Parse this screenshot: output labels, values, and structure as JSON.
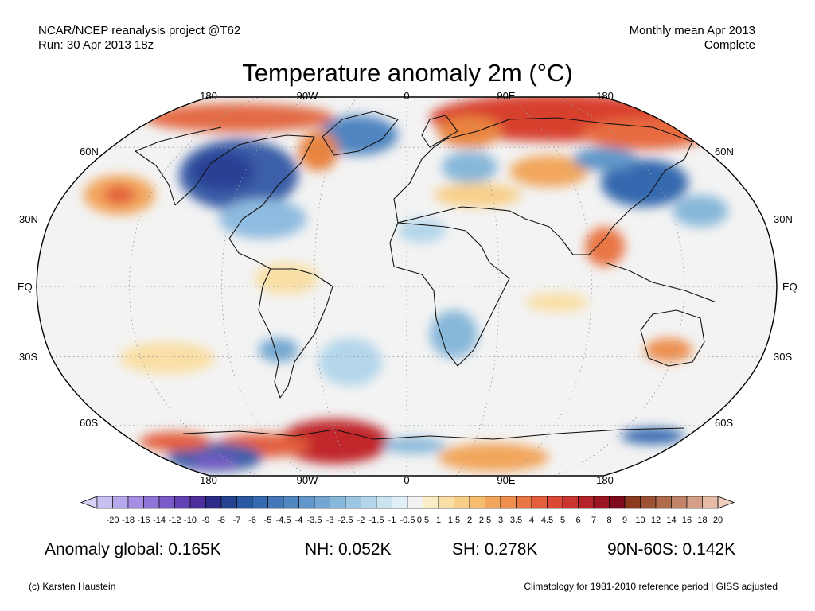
{
  "header": {
    "source_line": "NCAR/NCEP reanalysis project @T62",
    "run_line": "Run: 30 Apr 2013 18z",
    "period_line": "Monthly mean Apr 2013",
    "status_line": "Complete",
    "title": "Temperature anomaly 2m (°C)"
  },
  "map": {
    "projection": "robinson",
    "longitude_labels_top": [
      "180",
      "90W",
      "0",
      "90E",
      "180"
    ],
    "longitude_labels_bottom": [
      "180",
      "90W",
      "0",
      "90E",
      "180"
    ],
    "latitude_labels_left": [
      "60N",
      "30N",
      "EQ",
      "30S",
      "60S"
    ],
    "latitude_labels_right": [
      "60N",
      "30N",
      "EQ",
      "30S",
      "60S"
    ],
    "gridlines": true
  },
  "colorbar": {
    "labels": [
      "-20",
      "-18",
      "-16",
      "-14",
      "-12",
      "-10",
      "-9",
      "-8",
      "-7",
      "-6",
      "-5",
      "-4.5",
      "-4",
      "-3.5",
      "-3",
      "-2.5",
      "-2",
      "-1.5",
      "-1",
      "-0.5",
      "0.5",
      "1",
      "1.5",
      "2",
      "2.5",
      "3",
      "3.5",
      "4",
      "4.5",
      "5",
      "6",
      "7",
      "8",
      "9",
      "10",
      "12",
      "14",
      "16",
      "18",
      "20"
    ],
    "colors": [
      "#c9c0f2",
      "#b7a8ec",
      "#a48fe3",
      "#8f74d8",
      "#7a5ac9",
      "#6342b5",
      "#4d2e9d",
      "#2d2a8a",
      "#24428f",
      "#2a58a3",
      "#3469af",
      "#4377b8",
      "#5187c1",
      "#6197c9",
      "#73a7d1",
      "#87b7d9",
      "#9cc7e2",
      "#b3d6ea",
      "#cae4f1",
      "#e0eff7",
      "#f2f2f2",
      "#faecc4",
      "#f9dfa5",
      "#f8cf88",
      "#f6bd6f",
      "#f2a65c",
      "#ee8f4f",
      "#e97645",
      "#e35e3d",
      "#db4836",
      "#ca3530",
      "#b5232a",
      "#9c1523",
      "#7e0a1c",
      "#8b3a1e",
      "#9e5235",
      "#b06a4c",
      "#c28468",
      "#d49f86",
      "#e6bca7"
    ],
    "end_left_color": "#d9d2f6",
    "end_right_color": "#f1cdbd"
  },
  "stats": {
    "global": "Anomaly global: 0.165K",
    "nh": "NH: 0.052K",
    "sh": "SH: 0.278K",
    "band": "90N-60S: 0.142K"
  },
  "footer": {
    "credit": "(c) Karsten Haustein",
    "note": "Climatology for 1981-2010 reference period | GISS adjusted"
  }
}
